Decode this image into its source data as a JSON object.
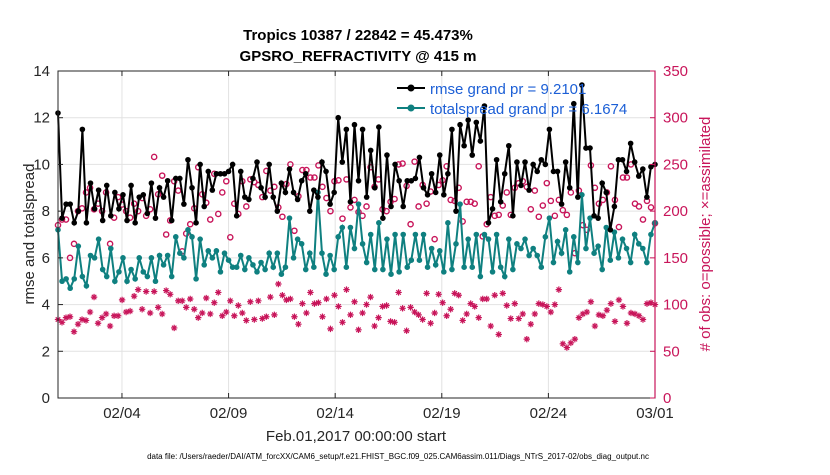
{
  "chart_data": {
    "type": "line",
    "title": "Tropics 10387 / 22842 = 45.473%",
    "subtitle": "GPSRO_REFRACTIVITY @ 415 m",
    "xlabel": "Feb.01,2017 00:00:00 start",
    "ylabel": "rmse and totalspread",
    "y2label": "# of obs: o=possible; ×=assimilated",
    "x_ticks": [
      "02/04",
      "02/09",
      "02/14",
      "02/19",
      "02/24",
      "03/01"
    ],
    "x_tick_days": [
      3,
      8,
      13,
      18,
      23,
      28
    ],
    "xlim": [
      0,
      28
    ],
    "ylim": [
      0,
      14
    ],
    "y_ticks": [
      "0",
      "2",
      "4",
      "6",
      "8",
      "10",
      "12",
      "14"
    ],
    "y2lim": [
      0,
      350
    ],
    "y2_ticks": [
      "0",
      "50",
      "100",
      "150",
      "200",
      "250",
      "300",
      "350"
    ],
    "legend_position": "top-right",
    "series": [
      {
        "name": "rmse grand pr = 9.2101",
        "axis": "left",
        "color": "#000000",
        "values": [
          12.2,
          7.7,
          8.3,
          8.3,
          7.5,
          8.0,
          11.5,
          7.5,
          9.2,
          8.1,
          8.9,
          7.6,
          9.1,
          7.8,
          8.8,
          8.1,
          8.7,
          7.6,
          9.1,
          7.5,
          8.6,
          8.7,
          7.9,
          9.2,
          7.7,
          9.0,
          8.6,
          9.3,
          7.6,
          9.4,
          9.4,
          8.3,
          10.2,
          9.0,
          7.5,
          10.0,
          8.2,
          9.7,
          8.9,
          9.6,
          9.6,
          9.6,
          9.7,
          10.0,
          7.8,
          9.7,
          8.6,
          8.5,
          9.4,
          10.1,
          9.0,
          8.6,
          10.0,
          8.6,
          8.0,
          9.2,
          8.8,
          9.8,
          8.8,
          8.5,
          9.3,
          9.6,
          8.0,
          8.9,
          8.6,
          10.1,
          9.7,
          8.3,
          8.8,
          12.0,
          10.1,
          11.5,
          8.4,
          11.7,
          9.3,
          11.5,
          8.6,
          10.6,
          9.0,
          11.6,
          7.7,
          10.4,
          8.2,
          10.0,
          9.3,
          8.2,
          9.3,
          9.3,
          9.4,
          10.3,
          9.0,
          8.7,
          9.6,
          8.8,
          10.4,
          8.7,
          9.6,
          11.5,
          8.0,
          11.7,
          10.8,
          11.9,
          10.4,
          11.8,
          11.0,
          12.5,
          7.5,
          8.1,
          10.2,
          8.4,
          9.6,
          10.8,
          7.8,
          10.1,
          9.1,
          10.1,
          8.9,
          10.0,
          9.7,
          10.2,
          10.0,
          11.5,
          9.7,
          9.7,
          8.3,
          10.1,
          9.0,
          12.6,
          8.6,
          13.4,
          10.7,
          10.7,
          7.8,
          7.7,
          9.2,
          8.8,
          7.2,
          8.2,
          10.2,
          10.2,
          9.7,
          10.9,
          10.1,
          9.5,
          9.8,
          8.6,
          9.9,
          10.0
        ]
      },
      {
        "name": "totalspread grand pr = 6.1674",
        "axis": "left",
        "color": "#0f8080",
        "values": [
          7.2,
          5.0,
          5.1,
          4.7,
          5.1,
          6.5,
          5.2,
          4.8,
          6.1,
          6.0,
          6.8,
          5.5,
          5.2,
          6.4,
          5.0,
          5.4,
          6.0,
          5.0,
          5.5,
          5.1,
          6.0,
          5.4,
          5.2,
          6.0,
          5.0,
          6.1,
          5.7,
          6.1,
          5.2,
          6.9,
          6.2,
          6.0,
          7.2,
          6.9,
          5.1,
          6.8,
          5.7,
          6.3,
          6.0,
          6.3,
          5.4,
          6.2,
          5.9,
          5.6,
          5.6,
          6.1,
          5.5,
          6.0,
          5.7,
          5.4,
          5.8,
          5.5,
          6.2,
          5.6,
          6.2,
          5.3,
          5.6,
          7.7,
          6.0,
          6.8,
          6.6,
          5.5,
          6.2,
          5.6,
          8.8,
          6.2,
          5.3,
          6.1,
          5.5,
          6.9,
          7.3,
          5.6,
          7.3,
          6.4,
          8.3,
          6.6,
          5.8,
          7.0,
          5.5,
          7.5,
          5.5,
          6.8,
          5.3,
          7.0,
          5.4,
          7.0,
          5.6,
          5.9,
          7.0,
          5.9,
          7.0,
          5.6,
          6.4,
          5.7,
          6.3,
          5.4,
          7.5,
          5.5,
          6.6,
          8.3,
          5.6,
          6.8,
          5.6,
          7.0,
          5.2,
          7.0,
          6.8,
          5.4,
          7.0,
          5.6,
          5.2,
          6.8,
          5.5,
          6.6,
          6.4,
          6.8,
          6.1,
          6.4,
          6.1,
          5.6,
          6.9,
          7.7,
          5.8,
          6.7,
          6.2,
          7.2,
          5.4,
          6.9,
          5.8,
          8.7,
          6.4,
          7.7,
          6.2,
          6.5,
          5.5,
          7.3,
          5.9,
          7.1,
          6.0,
          6.8,
          6.4,
          5.8,
          7.0,
          6.6,
          6.4,
          5.8,
          7.0,
          7.5
        ]
      },
      {
        "name": "possible",
        "axis": "right",
        "color": "#c8155a",
        "values": [
          185,
          191,
          191,
          150,
          165,
          200,
          203,
          220,
          225,
          202,
          208,
          200,
          220,
          165,
          193,
          215,
          207,
          200,
          193,
          208,
          200,
          214,
          195,
          202,
          258,
          218,
          238,
          175,
          190,
          232,
          222,
          157,
          176,
          186,
          203,
          247,
          218,
          209,
          191,
          240,
          197,
          220,
          232,
          172,
          208,
          197,
          232,
          205,
          234,
          231,
          228,
          215,
          243,
          222,
          226,
          204,
          194,
          229,
          250,
          179,
          216,
          244,
          244,
          236,
          236,
          249,
          226,
          214,
          200,
          232,
          233,
          192,
          234,
          204,
          212,
          199,
          195,
          205,
          247,
          226,
          234,
          202,
          200,
          210,
          213,
          250,
          251,
          227,
          186,
          253,
          205,
          228,
          208,
          221,
          170,
          228,
          233,
          248,
          212,
          211,
          225,
          189,
          210,
          210,
          208,
          248,
          173,
          186,
          215,
          195,
          196,
          206,
          220,
          196,
          225,
          230,
          232,
          226,
          202,
          222,
          194,
          206,
          230,
          211,
          195,
          212,
          201,
          196,
          220,
          155,
          222,
          185,
          180,
          249,
          225,
          208,
          212,
          220,
          248,
          212,
          183,
          236,
          236,
          250,
          208,
          205,
          191,
          211,
          204,
          187
        ]
      },
      {
        "name": "assimilated",
        "axis": "right",
        "color": "#c8155a",
        "values": [
          84,
          81,
          86,
          87,
          71,
          79,
          84,
          83,
          92,
          108,
          80,
          86,
          90,
          77,
          88,
          88,
          105,
          92,
          93,
          109,
          116,
          95,
          114,
          91,
          114,
          97,
          90,
          115,
          111,
          75,
          104,
          104,
          97,
          106,
          95,
          86,
          91,
          107,
          90,
          102,
          113,
          88,
          92,
          104,
          88,
          99,
          91,
          83,
          103,
          84,
          104,
          85,
          87,
          108,
          89,
          122,
          110,
          105,
          106,
          87,
          79,
          101,
          91,
          113,
          101,
          102,
          87,
          106,
          74,
          110,
          98,
          81,
          116,
          89,
          103,
          73,
          91,
          100,
          108,
          77,
          86,
          98,
          99,
          82,
          81,
          113,
          96,
          72,
          97,
          92,
          89,
          84,
          112,
          80,
          91,
          111,
          102,
          88,
          95,
          112,
          110,
          83,
          90,
          101,
          98,
          86,
          106,
          106,
          77,
          110,
          68,
          112,
          99,
          85,
          101,
          85,
          90,
          63,
          79,
          90,
          101,
          100,
          98,
          92,
          100,
          116,
          58,
          54,
          59,
          63,
          86,
          90,
          92,
          103,
          77,
          89,
          88,
          94,
          101,
          82,
          105,
          98,
          80,
          91,
          90,
          88,
          84,
          101,
          102,
          100
        ]
      }
    ],
    "footer": "data file: /Users/raeder/DAI/ATM_forcXX/CAM6_setup/f.e21.FHIST_BGC.f09_025.CAM6assim.011/Diags_NTrS_2017-02/obs_diag_output.nc"
  }
}
